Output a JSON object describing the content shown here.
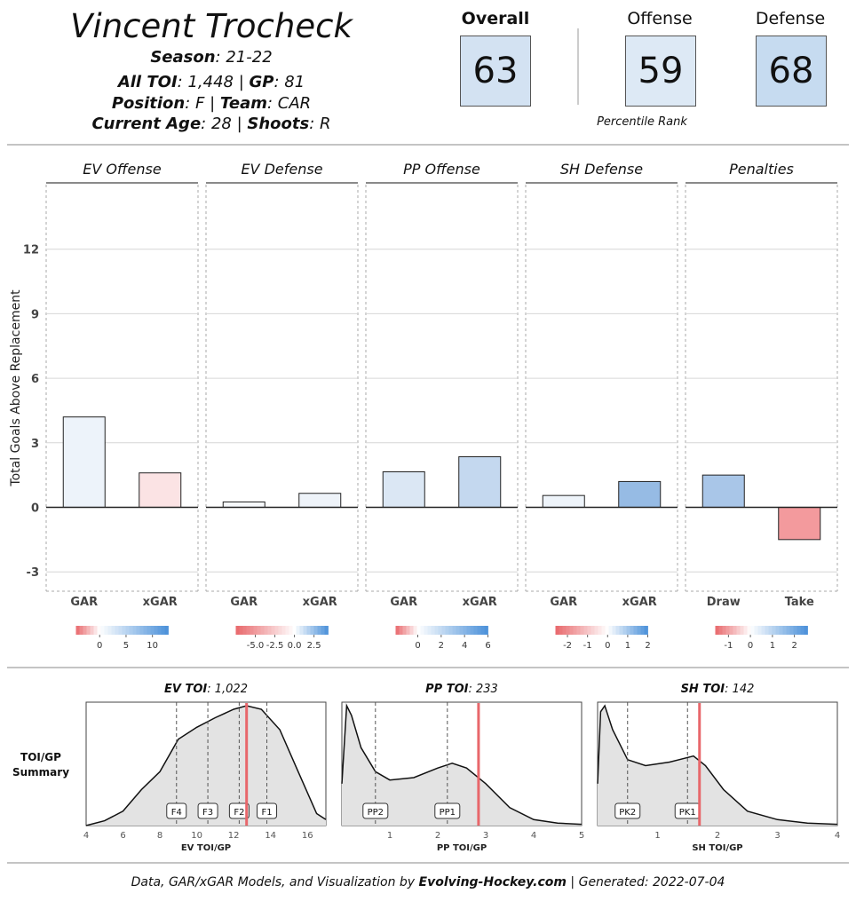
{
  "player": {
    "name": "Vincent Trocheck",
    "season_label": "Season",
    "season": "21-22",
    "toi_label": "All TOI",
    "toi": "1,448",
    "gp_label": "GP",
    "gp": "81",
    "position_label": "Position",
    "position": "F",
    "team_label": "Team",
    "team": "CAR",
    "age_label": "Current Age",
    "age": "28",
    "shoots_label": "Shoots",
    "shoots": "R"
  },
  "ranks": {
    "overall": {
      "label": "Overall",
      "value": "63",
      "color": "#d3e2f2"
    },
    "offense": {
      "label": "Offense",
      "value": "59",
      "color": "#dde9f5"
    },
    "defense": {
      "label": "Defense",
      "value": "68",
      "color": "#c6dbf0"
    },
    "caption": "Percentile Rank"
  },
  "chart_data": [
    {
      "type": "bar",
      "ylabel": "Total Goals Above Replacement",
      "ylim": [
        -3.9,
        15
      ],
      "yticks": [
        -3,
        0,
        3,
        6,
        9,
        12
      ],
      "grid": true,
      "panels": [
        {
          "title": "EV Offense",
          "categories": [
            "GAR",
            "xGAR"
          ],
          "values": [
            4.2,
            1.6
          ],
          "colors": [
            "#edf3fa",
            "#fbe3e4"
          ],
          "legend": {
            "ticks": [
              "0",
              "5",
              "10"
            ],
            "tick_values": [
              0,
              5,
              10
            ],
            "range": [
              -4.5,
              13
            ]
          }
        },
        {
          "title": "EV Defense",
          "categories": [
            "GAR",
            "xGAR"
          ],
          "values": [
            0.25,
            0.65
          ],
          "colors": [
            "#f7f9fc",
            "#eef3f9"
          ],
          "legend": {
            "ticks": [
              "-5.0",
              "-2.5",
              "0.0",
              "2.5"
            ],
            "tick_values": [
              -5,
              -2.5,
              0,
              2.5
            ],
            "range": [
              -7.5,
              4.3
            ]
          }
        },
        {
          "title": "PP Offense",
          "categories": [
            "GAR",
            "xGAR"
          ],
          "values": [
            1.65,
            2.35
          ],
          "colors": [
            "#dbe7f4",
            "#c4d8ef"
          ],
          "legend": {
            "ticks": [
              "0",
              "2",
              "4",
              "6"
            ],
            "tick_values": [
              0,
              2,
              4,
              6
            ],
            "range": [
              -1.9,
              6
            ]
          }
        },
        {
          "title": "SH Defense",
          "categories": [
            "GAR",
            "xGAR"
          ],
          "values": [
            0.55,
            1.2
          ],
          "colors": [
            "#eef4fa",
            "#96bbe4"
          ],
          "legend": {
            "ticks": [
              "-2",
              "-1",
              "0",
              "1",
              "2"
            ],
            "tick_values": [
              -2,
              -1,
              0,
              1,
              2
            ],
            "range": [
              -2.6,
              2
            ]
          }
        },
        {
          "title": "Penalties",
          "categories": [
            "Draw",
            "Take"
          ],
          "values": [
            1.5,
            -1.5
          ],
          "colors": [
            "#a9c6e8",
            "#f39a9d"
          ],
          "legend": {
            "ticks": [
              "-1",
              "0",
              "1",
              "2"
            ],
            "tick_values": [
              -1,
              0,
              1,
              2
            ],
            "range": [
              -1.6,
              2.6
            ]
          }
        }
      ]
    },
    {
      "type": "area",
      "row_label": "TOI/GP Summary",
      "panels": [
        {
          "title_bold": "EV TOI",
          "title_value": "1,022",
          "xlabel": "EV TOI/GP",
          "xlim": [
            4,
            17
          ],
          "xticks": [
            4,
            6,
            8,
            10,
            12,
            14,
            16
          ],
          "player_value": 12.7,
          "markers": [
            {
              "label": "F4",
              "x": 8.9
            },
            {
              "label": "F3",
              "x": 10.6
            },
            {
              "label": "F2",
              "x": 12.3
            },
            {
              "label": "F1",
              "x": 13.8
            }
          ],
          "density": [
            [
              4,
              0.0
            ],
            [
              5,
              0.04
            ],
            [
              6,
              0.12
            ],
            [
              7,
              0.3
            ],
            [
              8,
              0.45
            ],
            [
              9,
              0.72
            ],
            [
              10,
              0.82
            ],
            [
              11,
              0.9
            ],
            [
              12,
              0.97
            ],
            [
              12.7,
              1.0
            ],
            [
              13.5,
              0.97
            ],
            [
              14.5,
              0.8
            ],
            [
              15.5,
              0.45
            ],
            [
              16.5,
              0.1
            ],
            [
              17,
              0.05
            ]
          ]
        },
        {
          "title_bold": "PP TOI",
          "title_value": "233",
          "xlabel": "PP TOI/GP",
          "xlim": [
            0,
            5
          ],
          "xticks": [
            1,
            2,
            3,
            4,
            5
          ],
          "player_value": 2.85,
          "markers": [
            {
              "label": "PP2",
              "x": 0.7
            },
            {
              "label": "PP1",
              "x": 2.2
            }
          ],
          "density": [
            [
              0,
              0.35
            ],
            [
              0.1,
              1.0
            ],
            [
              0.2,
              0.92
            ],
            [
              0.4,
              0.65
            ],
            [
              0.7,
              0.45
            ],
            [
              1.0,
              0.38
            ],
            [
              1.5,
              0.4
            ],
            [
              2.0,
              0.48
            ],
            [
              2.3,
              0.52
            ],
            [
              2.6,
              0.48
            ],
            [
              3.0,
              0.35
            ],
            [
              3.5,
              0.15
            ],
            [
              4.0,
              0.05
            ],
            [
              4.5,
              0.02
            ],
            [
              5,
              0.01
            ]
          ]
        },
        {
          "title_bold": "SH TOI",
          "title_value": "142",
          "xlabel": "SH TOI/GP",
          "xlim": [
            0,
            4
          ],
          "xticks": [
            1,
            2,
            3,
            4
          ],
          "player_value": 1.7,
          "markers": [
            {
              "label": "PK2",
              "x": 0.5
            },
            {
              "label": "PK1",
              "x": 1.5
            }
          ],
          "density": [
            [
              0,
              0.35
            ],
            [
              0.05,
              0.95
            ],
            [
              0.12,
              1.0
            ],
            [
              0.25,
              0.8
            ],
            [
              0.5,
              0.55
            ],
            [
              0.8,
              0.5
            ],
            [
              1.2,
              0.53
            ],
            [
              1.6,
              0.58
            ],
            [
              1.8,
              0.5
            ],
            [
              2.1,
              0.3
            ],
            [
              2.5,
              0.12
            ],
            [
              3.0,
              0.05
            ],
            [
              3.5,
              0.02
            ],
            [
              4,
              0.01
            ]
          ]
        }
      ]
    }
  ],
  "footer": {
    "prefix": "Data, GAR/xGAR Models, and Visualization by",
    "site": "Evolving-Hockey.com",
    "suffix": "| Generated: 2022-07-04"
  },
  "colors": {
    "negative": "#e8676b",
    "neutral": "#ffffff",
    "positive": "#4a90d9",
    "player_line": "#e8676b"
  }
}
